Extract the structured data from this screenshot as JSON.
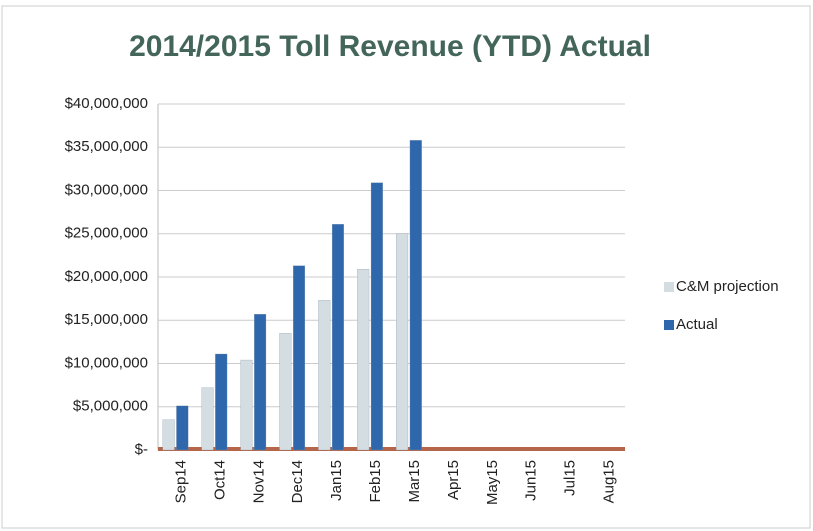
{
  "chart_data": {
    "type": "bar",
    "title": "2014/2015 Toll Revenue (YTD) Actual",
    "categories": [
      "Sep14",
      "Oct14",
      "Nov14",
      "Dec14",
      "Jan15",
      "Feb15",
      "Mar15",
      "Apr15",
      "May15",
      "Jun15",
      "Jul15",
      "Aug15"
    ],
    "series": [
      {
        "name": "C&M projection",
        "color": "#d4dde2",
        "values": [
          3500000,
          7200000,
          10400000,
          13500000,
          17300000,
          20900000,
          25000000,
          null,
          null,
          null,
          null,
          null
        ]
      },
      {
        "name": "Actual",
        "color": "#2f67ad",
        "values": [
          5100000,
          11100000,
          15700000,
          21300000,
          26100000,
          30900000,
          35800000,
          null,
          null,
          null,
          null,
          null
        ]
      }
    ],
    "ylim": [
      0,
      40000000
    ],
    "yticks": [
      {
        "value": 0,
        "label": "$-"
      },
      {
        "value": 5000000,
        "label": "$5,000,000"
      },
      {
        "value": 10000000,
        "label": "$10,000,000"
      },
      {
        "value": 15000000,
        "label": "$15,000,000"
      },
      {
        "value": 20000000,
        "label": "$20,000,000"
      },
      {
        "value": 25000000,
        "label": "$25,000,000"
      },
      {
        "value": 30000000,
        "label": "$30,000,000"
      },
      {
        "value": 35000000,
        "label": "$35,000,000"
      },
      {
        "value": 40000000,
        "label": "$40,000,000"
      }
    ],
    "grid": true,
    "legend": "right"
  }
}
